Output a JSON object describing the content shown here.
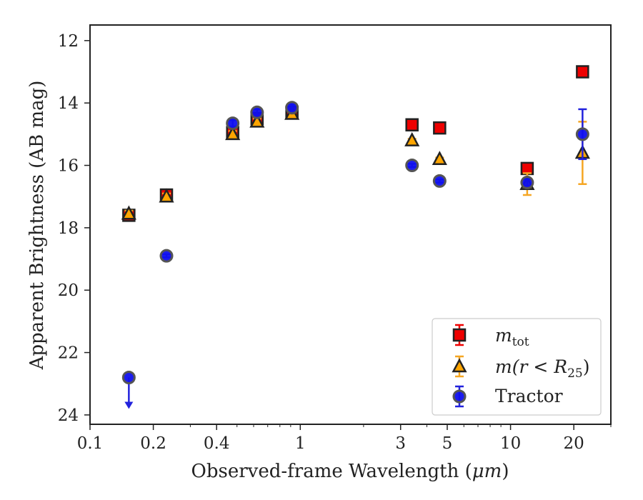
{
  "chart_data": {
    "type": "scatter",
    "xlabel_text": "Observed-frame Wavelength (",
    "xlabel_unit": "μm",
    "xlabel_close": ")",
    "ylabel": "Apparent Brightness (AB mag)",
    "x_scale": "log",
    "xlim": [
      0.1,
      30
    ],
    "ylim": [
      24.3,
      11.5
    ],
    "y_inverted": true,
    "x_ticks": [
      0.1,
      0.2,
      0.4,
      1,
      3,
      5,
      10,
      20
    ],
    "x_tick_labels": [
      "0.1",
      "0.2",
      "0.4",
      "1",
      "3",
      "5",
      "10",
      "20"
    ],
    "y_ticks": [
      12,
      14,
      16,
      18,
      20,
      22,
      24
    ],
    "y_tick_labels": [
      "12",
      "14",
      "16",
      "18",
      "20",
      "22",
      "24"
    ],
    "grid": false,
    "legend_placement": "lower-right",
    "colors": {
      "mtot_fill": "#ee0000",
      "mr25_fill": "#ffa500",
      "mr25_err": "#f5a623",
      "tractor_fill": "#1010ee",
      "tractor_err": "#2222dd",
      "marker_edge": "#222222"
    },
    "series": [
      {
        "name": "m_tot",
        "marker": "square",
        "points": [
          {
            "x": 0.153,
            "y": 17.6,
            "err": 0.1
          },
          {
            "x": 0.231,
            "y": 16.95,
            "err": 0.1
          },
          {
            "x": 0.477,
            "y": 14.95,
            "err": 0.1
          },
          {
            "x": 0.623,
            "y": 14.5,
            "err": 0.12
          },
          {
            "x": 0.913,
            "y": 14.3,
            "err": 0.12
          },
          {
            "x": 3.4,
            "y": 14.7,
            "err": 0.05
          },
          {
            "x": 4.6,
            "y": 14.8,
            "err": 0.05
          },
          {
            "x": 12.0,
            "y": 16.1,
            "err": 0.05
          },
          {
            "x": 22.0,
            "y": 13.0,
            "err": 0.05
          }
        ]
      },
      {
        "name": "m(r<R25)",
        "marker": "triangle",
        "points": [
          {
            "x": 0.153,
            "y": 17.55,
            "err": 0.1
          },
          {
            "x": 0.231,
            "y": 17.0,
            "err": 0.1
          },
          {
            "x": 0.477,
            "y": 15.0,
            "err": 0.1
          },
          {
            "x": 0.623,
            "y": 14.6,
            "err": 0.1
          },
          {
            "x": 0.913,
            "y": 14.35,
            "err": 0.1
          },
          {
            "x": 3.4,
            "y": 15.2,
            "err": 0.05
          },
          {
            "x": 4.6,
            "y": 15.8,
            "err": 0.05
          },
          {
            "x": 12.0,
            "y": 16.6,
            "err": 0.35
          },
          {
            "x": 22.0,
            "y": 15.6,
            "err": 1.0
          }
        ]
      },
      {
        "name": "Tractor",
        "marker": "circle",
        "points": [
          {
            "x": 0.153,
            "y": 22.8,
            "upper_limit": true
          },
          {
            "x": 0.231,
            "y": 18.9,
            "err": 0.05
          },
          {
            "x": 0.477,
            "y": 14.65,
            "err": 0.1
          },
          {
            "x": 0.623,
            "y": 14.3,
            "err": 0.1
          },
          {
            "x": 0.913,
            "y": 14.15,
            "err": 0.1
          },
          {
            "x": 3.4,
            "y": 16.0,
            "err": 0.05
          },
          {
            "x": 4.6,
            "y": 16.5,
            "err": 0.05
          },
          {
            "x": 12.0,
            "y": 16.55,
            "err": 0.1
          },
          {
            "x": 22.0,
            "y": 15.0,
            "err": 0.8
          }
        ]
      }
    ],
    "legend": {
      "mtot": {
        "main": "m",
        "sub": "tot"
      },
      "mr25": {
        "pre": "m(r < R",
        "sub": "25",
        "post": ")"
      },
      "tractor": {
        "text": "Tractor"
      }
    }
  }
}
